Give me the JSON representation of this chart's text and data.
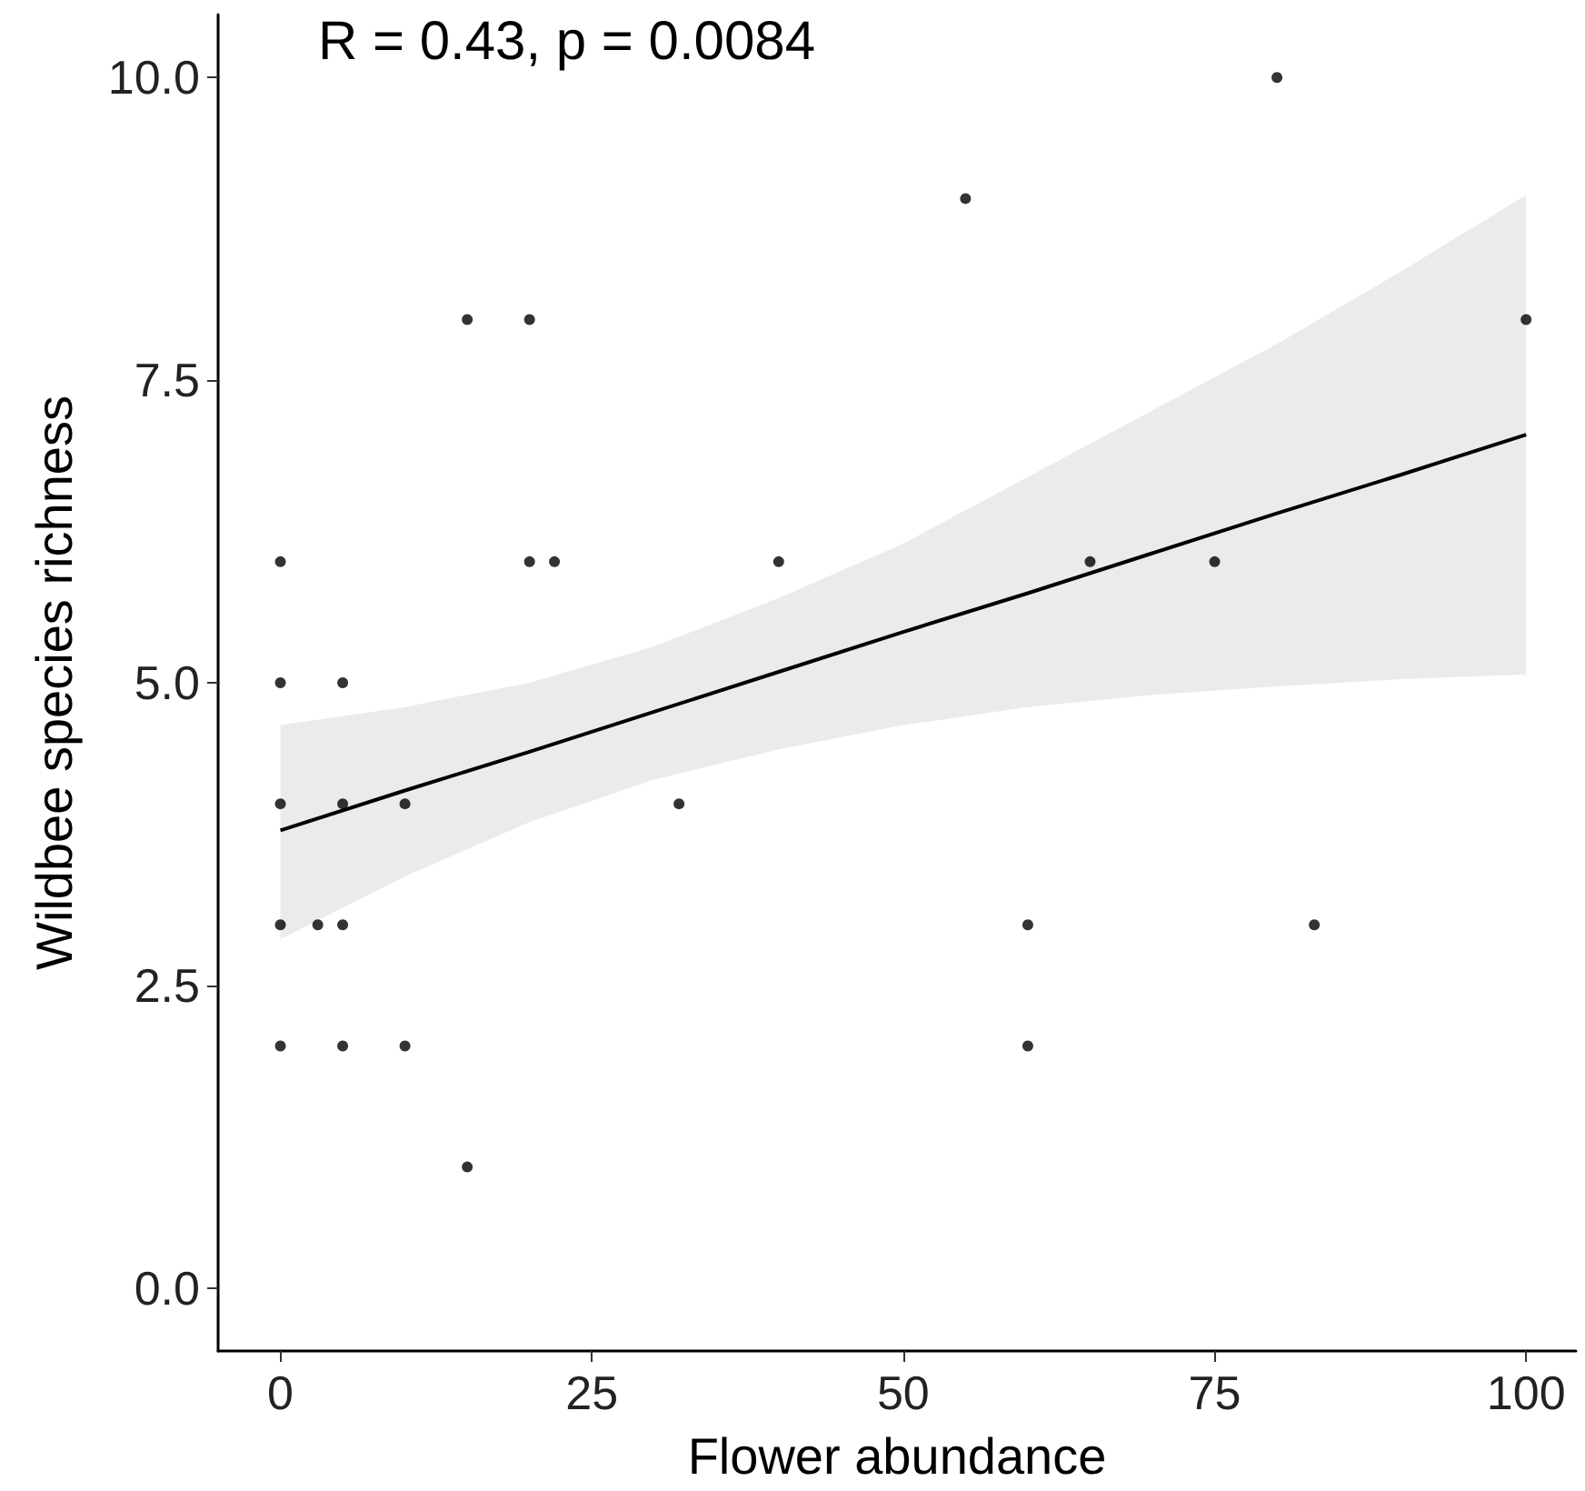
{
  "chart_data": {
    "type": "scatter",
    "xlabel": "Flower abundance",
    "ylabel": "Wildbee species richness",
    "annotations": [
      "R = 0.43, p = 0.0084"
    ],
    "xlim": [
      -5,
      104
    ],
    "xticks": [
      0,
      25,
      50,
      75,
      100
    ],
    "ylim": [
      -0.52,
      10.52
    ],
    "yticks": [
      {
        "value": 0,
        "label": "0.0"
      },
      {
        "value": 2.5,
        "label": "2.5"
      },
      {
        "value": 5,
        "label": "5.0"
      },
      {
        "value": 7.5,
        "label": "7.5"
      },
      {
        "value": 10,
        "label": "10.0"
      }
    ],
    "grid": false,
    "marker": "circle",
    "series": [
      {
        "color": "#000000",
        "x": [
          0,
          0,
          0,
          0,
          0,
          3,
          5,
          5,
          5,
          5,
          10,
          10,
          15,
          15,
          20,
          20,
          22,
          32,
          40,
          55,
          60,
          60,
          65,
          75,
          80,
          83,
          100
        ],
        "values": [
          6,
          5,
          4,
          3,
          2,
          3,
          5,
          4,
          3,
          2,
          4,
          2,
          8,
          1,
          8,
          6,
          6,
          4,
          6,
          9,
          3,
          2,
          6,
          6,
          10,
          3,
          8
        ]
      },
      {
        "type": "line",
        "color": "#000000",
        "marker": "none",
        "line_style": "solid",
        "x": [
          0,
          10,
          20,
          30,
          40,
          50,
          60,
          70,
          80,
          90,
          100
        ],
        "values": [
          3.78,
          4.11,
          4.43,
          4.76,
          5.09,
          5.42,
          5.74,
          6.07,
          6.4,
          6.72,
          7.05
        ],
        "lower": [
          2.88,
          3.4,
          3.85,
          4.2,
          4.45,
          4.65,
          4.8,
          4.9,
          4.97,
          5.03,
          5.07
        ],
        "upper": [
          4.65,
          4.8,
          5.0,
          5.3,
          5.7,
          6.15,
          6.7,
          7.25,
          7.8,
          8.4,
          9.03
        ]
      }
    ]
  }
}
